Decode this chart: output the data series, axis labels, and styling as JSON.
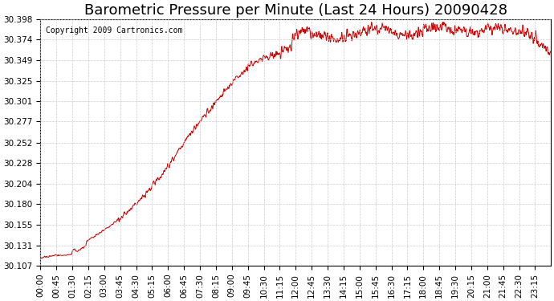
{
  "title": "Barometric Pressure per Minute (Last 24 Hours) 20090428",
  "copyright": "Copyright 2009 Cartronics.com",
  "line_color": "#cc0000",
  "background_color": "#ffffff",
  "plot_bg_color": "#ffffff",
  "grid_color": "#cccccc",
  "ylim": [
    30.107,
    30.398
  ],
  "yticks": [
    30.107,
    30.131,
    30.155,
    30.18,
    30.204,
    30.228,
    30.252,
    30.277,
    30.301,
    30.325,
    30.349,
    30.374,
    30.398
  ],
  "xtick_labels": [
    "00:00",
    "00:45",
    "01:30",
    "02:15",
    "03:00",
    "03:45",
    "04:30",
    "05:15",
    "06:00",
    "06:45",
    "07:30",
    "08:15",
    "09:00",
    "09:45",
    "10:30",
    "11:15",
    "12:00",
    "12:45",
    "13:30",
    "14:15",
    "15:00",
    "15:45",
    "16:30",
    "17:15",
    "18:00",
    "18:45",
    "19:30",
    "20:15",
    "21:00",
    "21:45",
    "22:30",
    "23:15"
  ],
  "title_fontsize": 13,
  "tick_fontsize": 7.5,
  "copyright_fontsize": 7
}
